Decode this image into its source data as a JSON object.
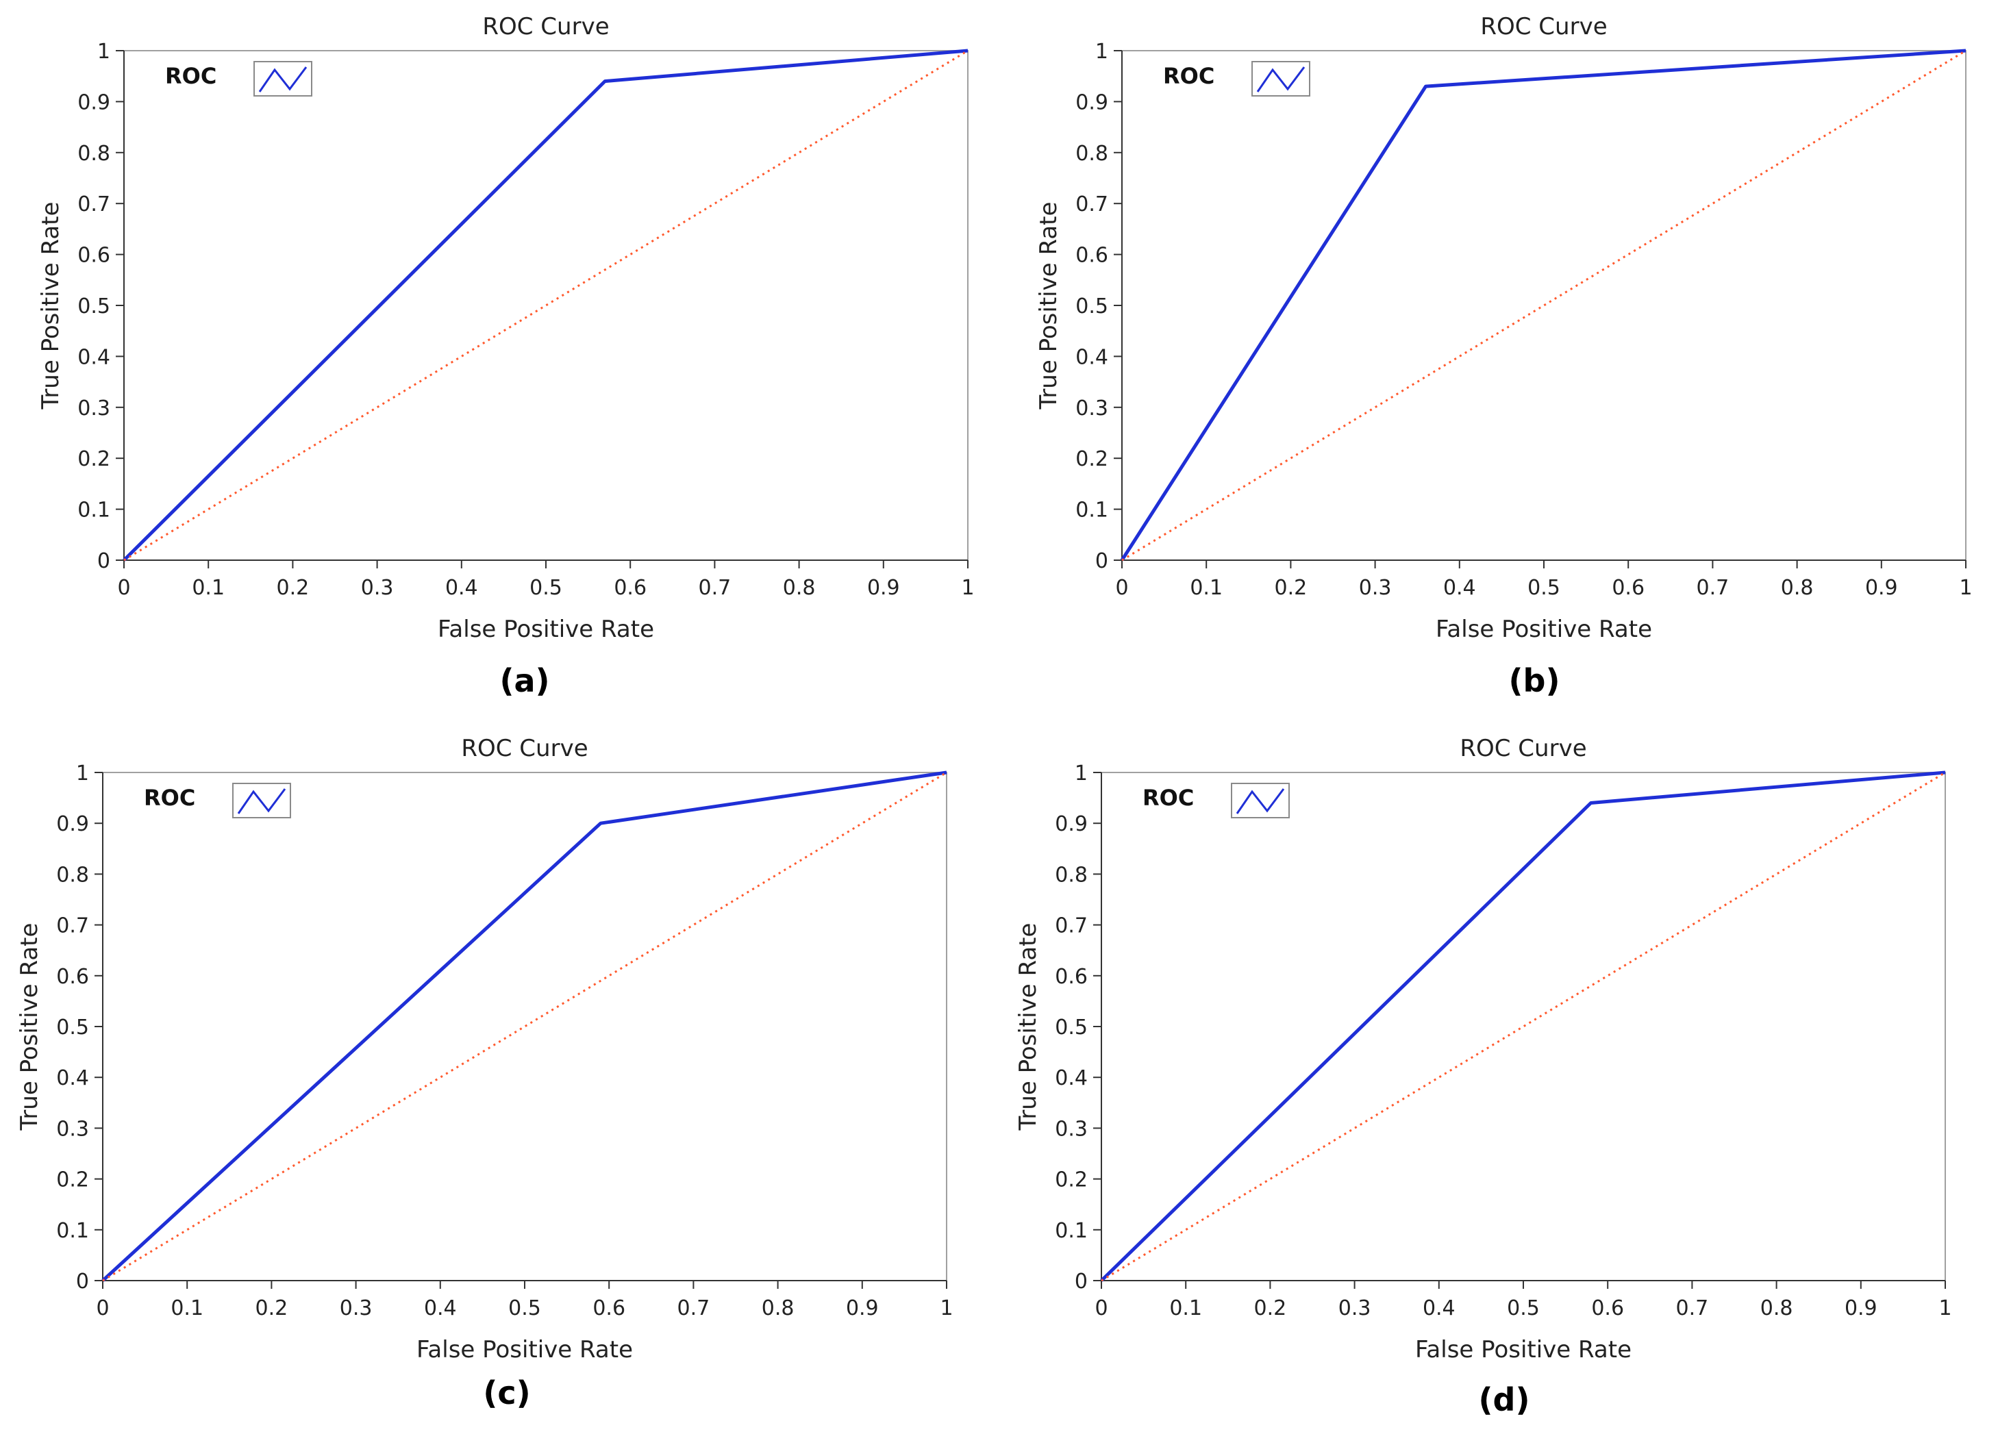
{
  "colors": {
    "roc_line": "#1f2fd6",
    "reference_line": "#ff5a2e",
    "frame": "#a0a0a0",
    "axis": "#333333"
  },
  "chart_data": [
    {
      "type": "line",
      "panel": "(a)",
      "title": "ROC Curve",
      "xlabel": "False Positive Rate",
      "ylabel": "True Positive Rate",
      "xlim": [
        0,
        1
      ],
      "ylim": [
        0,
        1
      ],
      "xticks": [
        "0",
        "0.1",
        "0.2",
        "0.3",
        "0.4",
        "0.5",
        "0.6",
        "0.7",
        "0.8",
        "0.9",
        "1"
      ],
      "yticks": [
        "0",
        "0.1",
        "0.2",
        "0.3",
        "0.4",
        "0.5",
        "0.6",
        "0.7",
        "0.8",
        "0.9",
        "1"
      ],
      "legend": {
        "label": "ROC",
        "placement": "top-left",
        "icon": "line-sample-icon"
      },
      "series": [
        {
          "name": "ROC",
          "style": "solid",
          "x": [
            0,
            0.57,
            1
          ],
          "y": [
            0,
            0.94,
            1
          ]
        },
        {
          "name": "Reference",
          "style": "dotted",
          "x": [
            0,
            1
          ],
          "y": [
            0,
            1
          ]
        }
      ]
    },
    {
      "type": "line",
      "panel": "(b)",
      "title": "ROC Curve",
      "xlabel": "False Positive Rate",
      "ylabel": "True Positive Rate",
      "xlim": [
        0,
        1
      ],
      "ylim": [
        0,
        1
      ],
      "xticks": [
        "0",
        "0.1",
        "0.2",
        "0.3",
        "0.4",
        "0.5",
        "0.6",
        "0.7",
        "0.8",
        "0.9",
        "1"
      ],
      "yticks": [
        "0",
        "0.1",
        "0.2",
        "0.3",
        "0.4",
        "0.5",
        "0.6",
        "0.7",
        "0.8",
        "0.9",
        "1"
      ],
      "legend": {
        "label": "ROC",
        "placement": "top-left",
        "icon": "line-sample-icon"
      },
      "series": [
        {
          "name": "ROC",
          "style": "solid",
          "x": [
            0,
            0.36,
            1
          ],
          "y": [
            0,
            0.93,
            1
          ]
        },
        {
          "name": "Reference",
          "style": "dotted",
          "x": [
            0,
            1
          ],
          "y": [
            0,
            1
          ]
        }
      ]
    },
    {
      "type": "line",
      "panel": "(c)",
      "title": "ROC Curve",
      "xlabel": "False Positive Rate",
      "ylabel": "True Positive Rate",
      "xlim": [
        0,
        1
      ],
      "ylim": [
        0,
        1
      ],
      "xticks": [
        "0",
        "0.1",
        "0.2",
        "0.3",
        "0.4",
        "0.5",
        "0.6",
        "0.7",
        "0.8",
        "0.9",
        "1"
      ],
      "yticks": [
        "0",
        "0.1",
        "0.2",
        "0.3",
        "0.4",
        "0.5",
        "0.6",
        "0.7",
        "0.8",
        "0.9",
        "1"
      ],
      "legend": {
        "label": "ROC",
        "placement": "top-left",
        "icon": "line-sample-icon"
      },
      "series": [
        {
          "name": "ROC",
          "style": "solid",
          "x": [
            0,
            0.59,
            1
          ],
          "y": [
            0,
            0.9,
            1
          ]
        },
        {
          "name": "Reference",
          "style": "dotted",
          "x": [
            0,
            1
          ],
          "y": [
            0,
            1
          ]
        }
      ]
    },
    {
      "type": "line",
      "panel": "(d)",
      "title": "ROC Curve",
      "xlabel": "False Positive Rate",
      "ylabel": "True Positive Rate",
      "xlim": [
        0,
        1
      ],
      "ylim": [
        0,
        1
      ],
      "xticks": [
        "0",
        "0.1",
        "0.2",
        "0.3",
        "0.4",
        "0.5",
        "0.6",
        "0.7",
        "0.8",
        "0.9",
        "1"
      ],
      "yticks": [
        "0",
        "0.1",
        "0.2",
        "0.3",
        "0.4",
        "0.5",
        "0.6",
        "0.7",
        "0.8",
        "0.9",
        "1"
      ],
      "legend": {
        "label": "ROC",
        "placement": "top-left",
        "icon": "line-sample-icon"
      },
      "series": [
        {
          "name": "ROC",
          "style": "solid",
          "x": [
            0,
            0.58,
            1
          ],
          "y": [
            0,
            0.94,
            1
          ]
        },
        {
          "name": "Reference",
          "style": "dotted",
          "x": [
            0,
            1
          ],
          "y": [
            0,
            1
          ]
        }
      ]
    }
  ]
}
